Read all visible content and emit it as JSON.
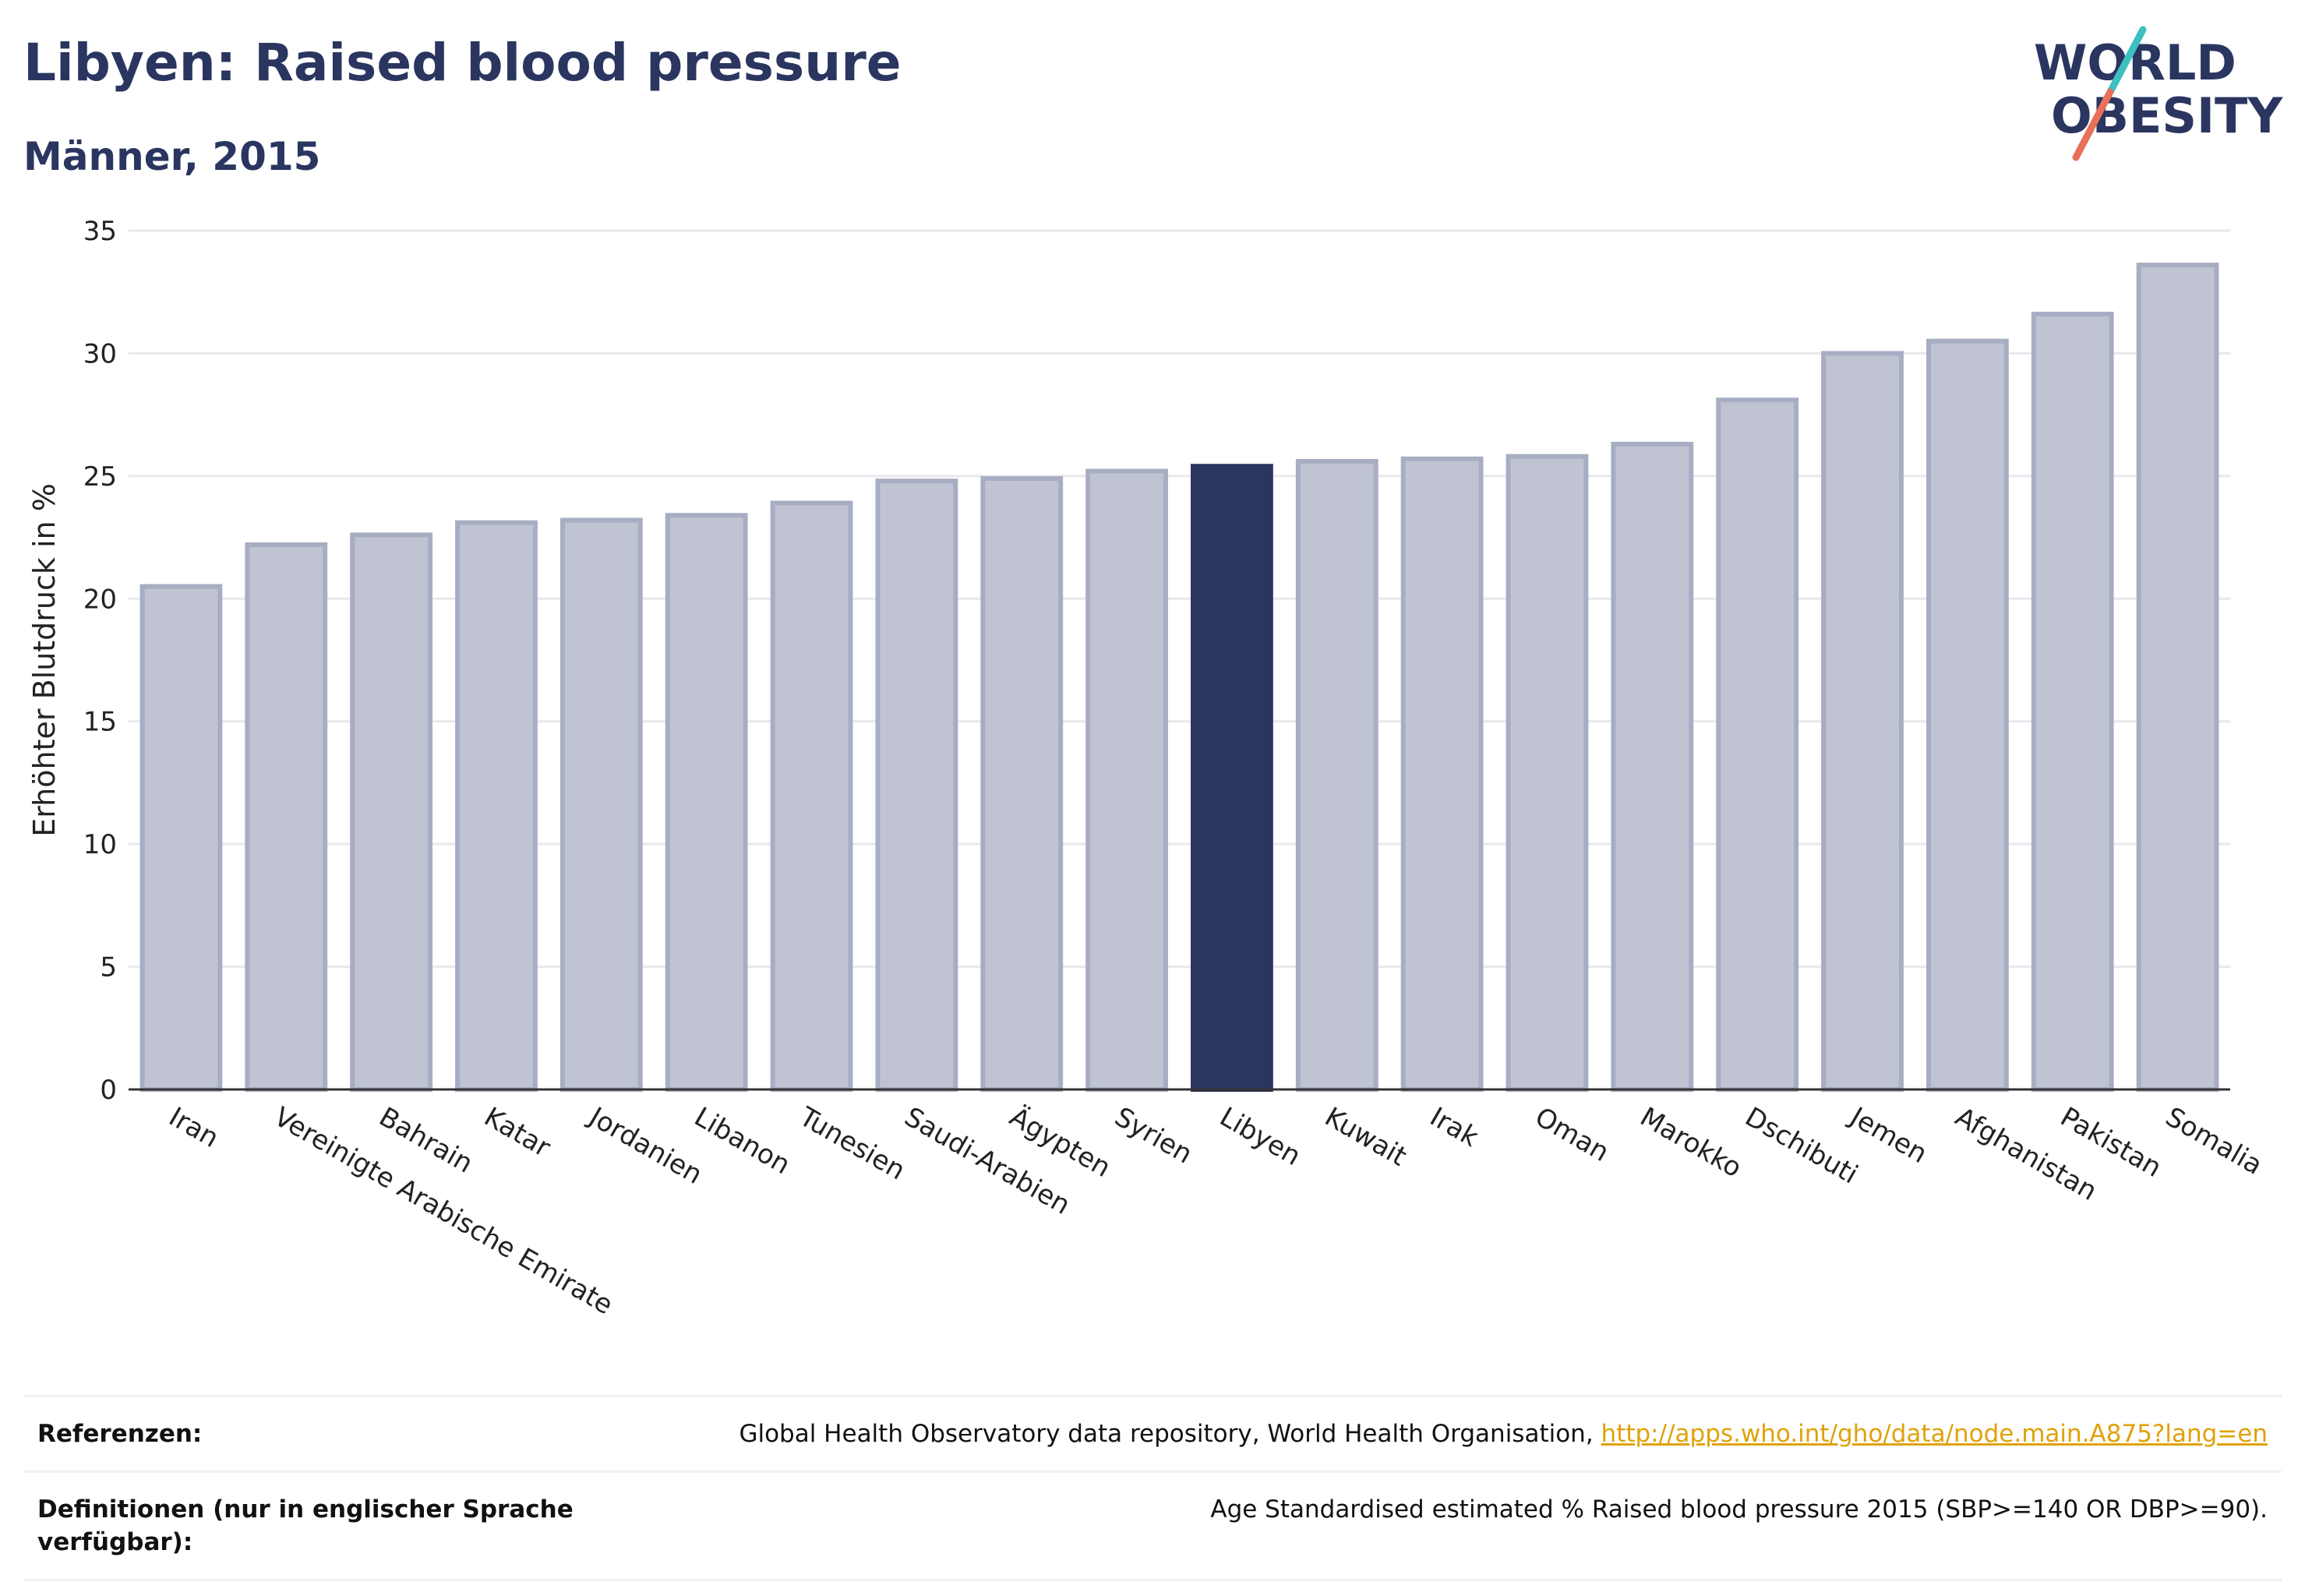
{
  "header": {
    "title": "Libyen: Raised blood pressure",
    "subtitle": "Männer, 2015"
  },
  "logo": {
    "line1": "WORLD",
    "line2": "OBESITY",
    "slash_colors": [
      "#3cc0c0",
      "#e8705a"
    ]
  },
  "colors": {
    "highlight": "#2a3560",
    "bar_fill": "#c0c4d2",
    "bar_stroke": "#a7adc2",
    "grid": "#e8e8ee",
    "link": "#e0a20a"
  },
  "chart_data": {
    "type": "bar",
    "ylabel": "Erhöhter Blutdruck in %",
    "ylim": [
      0,
      35
    ],
    "yticks": [
      0,
      5,
      10,
      15,
      20,
      25,
      30,
      35
    ],
    "grid": true,
    "highlight": "Libyen",
    "categories": [
      "Iran",
      "Vereinigte Arabische Emirate",
      "Bahrain",
      "Katar",
      "Jordanien",
      "Libanon",
      "Tunesien",
      "Saudi-Arabien",
      "Ägypten",
      "Syrien",
      "Libyen",
      "Kuwait",
      "Irak",
      "Oman",
      "Marokko",
      "Dschibuti",
      "Jemen",
      "Afghanistan",
      "Pakistan",
      "Somalia"
    ],
    "values": [
      20.5,
      22.2,
      22.6,
      23.1,
      23.2,
      23.4,
      23.9,
      24.8,
      24.9,
      25.2,
      25.4,
      25.6,
      25.7,
      25.8,
      26.3,
      28.1,
      30.0,
      30.5,
      31.6,
      33.6
    ]
  },
  "references": [
    {
      "label": "Referenzen:",
      "text": "Global Health Observatory data repository, World Health Organisation, ",
      "link": "http://apps.who.int/gho/data/node.main.A875?lang=en"
    },
    {
      "label": "Definitionen (nur in englischer Sprache verfügbar):",
      "text": "Age Standardised estimated % Raised blood pressure 2015 (SBP>=140 OR DBP>=90)."
    }
  ]
}
